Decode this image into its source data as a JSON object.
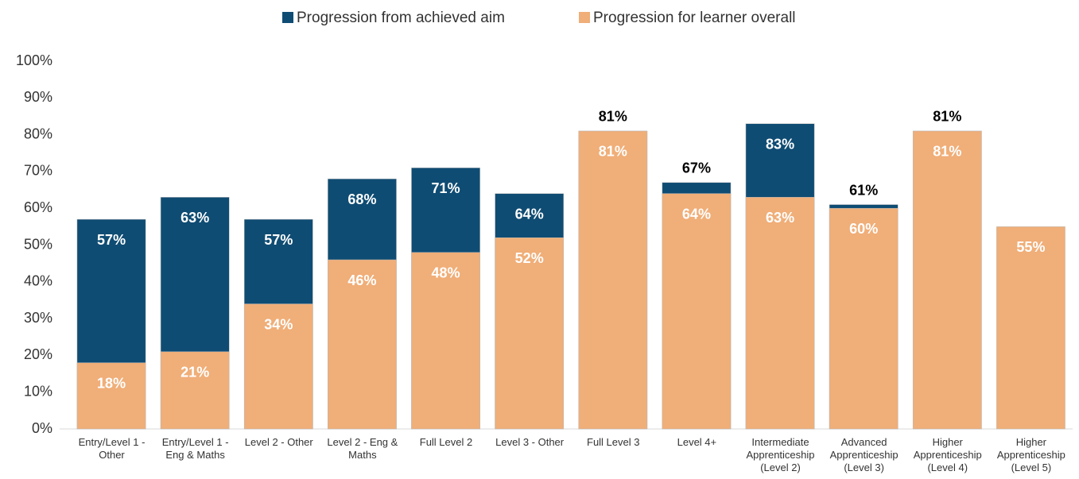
{
  "chart_data": {
    "type": "bar",
    "mode": "overlap",
    "categories": [
      "Entry/Level 1 -\nOther",
      "Entry/Level 1 -\nEng & Maths",
      "Level 2 - Other",
      "Level 2 - Eng &\nMaths",
      "Full Level 2",
      "Level 3 - Other",
      "Full Level 3",
      "Level 4+",
      "Intermediate\nApprenticeship\n(Level 2)",
      "Advanced\nApprenticeship\n(Level 3)",
      "Higher\nApprenticeship\n(Level 4)",
      "Higher\nApprenticeship\n(Level 5)"
    ],
    "series": [
      {
        "name": "Progression from achieved aim",
        "color": "#0f4c73",
        "values": [
          57,
          63,
          57,
          68,
          71,
          64,
          81,
          67,
          83,
          61,
          81,
          null
        ],
        "value_labels": [
          "57%",
          "63%",
          "57%",
          "68%",
          "71%",
          "64%",
          "81%",
          "67%",
          "83%",
          "61%",
          "81%",
          null
        ]
      },
      {
        "name": "Progression for learner overall",
        "color": "#f0ae78",
        "values": [
          18,
          21,
          34,
          46,
          48,
          52,
          81,
          64,
          63,
          60,
          81,
          55
        ],
        "value_labels": [
          "18%",
          "21%",
          "34%",
          "46%",
          "48%",
          "52%",
          "81%",
          "64%",
          "63%",
          "60%",
          "81%",
          "55%"
        ]
      }
    ],
    "ylim": [
      0,
      100
    ],
    "yticks": [
      {
        "value": 0,
        "label": "0%"
      },
      {
        "value": 10,
        "label": "10%"
      },
      {
        "value": 20,
        "label": "20%"
      },
      {
        "value": 30,
        "label": "30%"
      },
      {
        "value": 40,
        "label": "40%"
      },
      {
        "value": 50,
        "label": "50%"
      },
      {
        "value": 60,
        "label": "60%"
      },
      {
        "value": 70,
        "label": "70%"
      },
      {
        "value": 80,
        "label": "80%"
      },
      {
        "value": 90,
        "label": "90%"
      },
      {
        "value": 100,
        "label": "100%"
      }
    ],
    "grid": false,
    "legend": "top"
  }
}
